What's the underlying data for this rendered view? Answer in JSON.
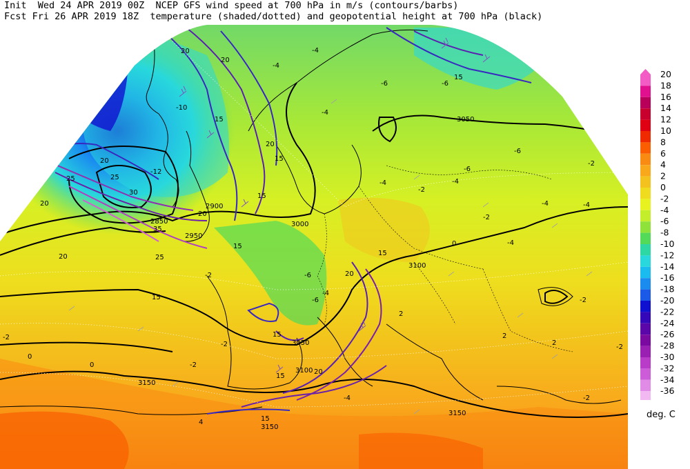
{
  "header": {
    "init_label": "Init",
    "init_time": "Wed 24 APR 2019 00Z",
    "fcst_label": "Fcst",
    "fcst_time": "Fri 26 APR 2019 18Z",
    "line1_desc": "NCEP GFS wind speed at 700 hPa in m/s (contours/barbs)",
    "line2_desc": "temperature (shaded/dotted) and geopotential height at 700 hPa (black)"
  },
  "colorbar": {
    "units": "deg. C",
    "levels": [
      {
        "value": "20",
        "color": "#f25cc4"
      },
      {
        "value": "18",
        "color": "#e0108e"
      },
      {
        "value": "16",
        "color": "#b8005a"
      },
      {
        "value": "14",
        "color": "#c8002e"
      },
      {
        "value": "12",
        "color": "#e00014"
      },
      {
        "value": "10",
        "color": "#f02a00"
      },
      {
        "value": "8",
        "color": "#fa5e00"
      },
      {
        "value": "6",
        "color": "#f98a12"
      },
      {
        "value": "4",
        "color": "#f9a81c"
      },
      {
        "value": "2",
        "color": "#f3c21c"
      },
      {
        "value": "0",
        "color": "#f0dc1e"
      },
      {
        "value": "-2",
        "color": "#e7f21e"
      },
      {
        "value": "-4",
        "color": "#c4ee2a"
      },
      {
        "value": "-6",
        "color": "#8ee23a"
      },
      {
        "value": "-8",
        "color": "#52da58"
      },
      {
        "value": "-10",
        "color": "#2ed8a4"
      },
      {
        "value": "-12",
        "color": "#28d8dc"
      },
      {
        "value": "-14",
        "color": "#1abcf0"
      },
      {
        "value": "-16",
        "color": "#1a8cf0"
      },
      {
        "value": "-18",
        "color": "#1a5ae6"
      },
      {
        "value": "-20",
        "color": "#1010d0"
      },
      {
        "value": "-22",
        "color": "#3408b8"
      },
      {
        "value": "-24",
        "color": "#5a06a8"
      },
      {
        "value": "-26",
        "color": "#7a0aa0"
      },
      {
        "value": "-28",
        "color": "#9a20b4"
      },
      {
        "value": "-30",
        "color": "#b83cc8"
      },
      {
        "value": "-32",
        "color": "#cc5cd8"
      },
      {
        "value": "-34",
        "color": "#e08ce6"
      },
      {
        "value": "-36",
        "color": "#f2b8f2"
      }
    ]
  },
  "map_labels": {
    "height": [
      {
        "text": "3050"
      },
      {
        "text": "3000"
      },
      {
        "text": "2900"
      },
      {
        "text": "2850"
      },
      {
        "text": "2950"
      },
      {
        "text": "3100"
      },
      {
        "text": "3050"
      },
      {
        "text": "3100"
      },
      {
        "text": "3150"
      },
      {
        "text": "3150"
      },
      {
        "text": "3150"
      }
    ],
    "wind": [
      {
        "text": "20"
      },
      {
        "text": "15"
      },
      {
        "text": "20"
      },
      {
        "text": "25"
      },
      {
        "text": "20"
      },
      {
        "text": "25"
      },
      {
        "text": "20"
      },
      {
        "text": "30"
      },
      {
        "text": "20"
      },
      {
        "text": "35"
      },
      {
        "text": "15"
      },
      {
        "text": "15"
      },
      {
        "text": "20"
      },
      {
        "text": "25"
      },
      {
        "text": "15"
      },
      {
        "text": "20"
      },
      {
        "text": "15"
      },
      {
        "text": "15"
      },
      {
        "text": "15"
      },
      {
        "text": "15"
      },
      {
        "text": "20"
      },
      {
        "text": "15"
      },
      {
        "text": "20"
      },
      {
        "text": "15"
      },
      {
        "text": "20"
      }
    ],
    "temperature": [
      {
        "text": "-4"
      },
      {
        "text": "-4"
      },
      {
        "text": "-4"
      },
      {
        "text": "-6"
      },
      {
        "text": "-6"
      },
      {
        "text": "-6"
      },
      {
        "text": "-10"
      },
      {
        "text": "-12"
      },
      {
        "text": "-2"
      },
      {
        "text": "-4"
      },
      {
        "text": "-6"
      },
      {
        "text": "-4"
      },
      {
        "text": "-2"
      },
      {
        "text": "-4"
      },
      {
        "text": "-4"
      },
      {
        "text": "-2"
      },
      {
        "text": "-4"
      },
      {
        "text": "0"
      },
      {
        "text": "-6"
      },
      {
        "text": "-6"
      },
      {
        "text": "-4"
      },
      {
        "text": "-2"
      },
      {
        "text": "-2"
      },
      {
        "text": "-2"
      },
      {
        "text": "-2"
      },
      {
        "text": "0"
      },
      {
        "text": "0"
      },
      {
        "text": "2"
      },
      {
        "text": "-2"
      },
      {
        "text": "-2"
      },
      {
        "text": "2"
      },
      {
        "text": "-4"
      },
      {
        "text": "2"
      },
      {
        "text": "4"
      },
      {
        "text": "-2"
      }
    ]
  }
}
